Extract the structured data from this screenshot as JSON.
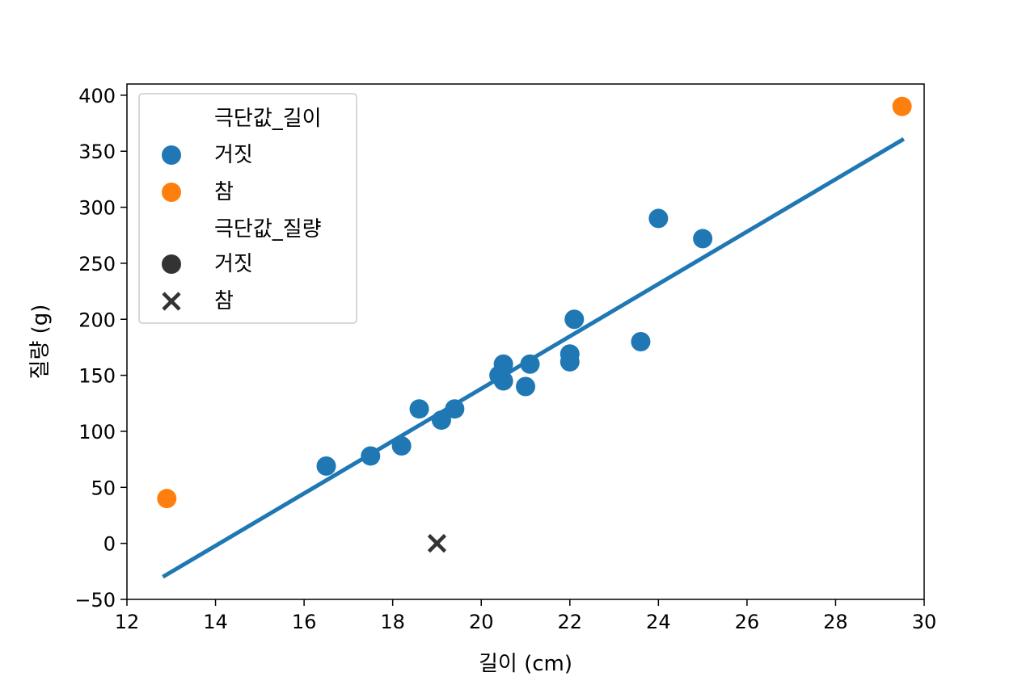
{
  "chart_data": {
    "type": "scatter",
    "title": "",
    "xlabel": "길이 (cm)",
    "ylabel": "질량 (g)",
    "xlim": [
      12,
      30
    ],
    "ylim": [
      -50,
      410
    ],
    "xticks": [
      12,
      14,
      16,
      18,
      20,
      22,
      24,
      26,
      28,
      30
    ],
    "xtick_labels": [
      "12",
      "14",
      "16",
      "18",
      "20",
      "22",
      "24",
      "26",
      "28",
      "30"
    ],
    "yticks": [
      -50,
      0,
      50,
      100,
      150,
      200,
      250,
      300,
      350,
      400
    ],
    "ytick_labels": [
      "−50",
      "0",
      "50",
      "100",
      "150",
      "200",
      "250",
      "300",
      "350",
      "400"
    ],
    "grid": false,
    "legend_position": "top-left",
    "colors": {
      "false": "#1f77b4",
      "true": "#ff7f0e",
      "marker_neutral": "#333333",
      "regression": "#1f77b4"
    },
    "legend": {
      "hue_title": "극단값_길이",
      "hue_false": "거짓",
      "hue_true": "참",
      "style_title": "극단값_질량",
      "style_false": "거짓",
      "style_true": "참"
    },
    "points": [
      {
        "x": 16.5,
        "y": 69,
        "hue": false,
        "marker": "circle"
      },
      {
        "x": 17.5,
        "y": 78,
        "hue": false,
        "marker": "circle"
      },
      {
        "x": 18.2,
        "y": 87,
        "hue": false,
        "marker": "circle"
      },
      {
        "x": 18.6,
        "y": 120,
        "hue": false,
        "marker": "circle"
      },
      {
        "x": 19.1,
        "y": 110,
        "hue": false,
        "marker": "circle"
      },
      {
        "x": 19.4,
        "y": 120,
        "hue": false,
        "marker": "circle"
      },
      {
        "x": 20.4,
        "y": 150,
        "hue": false,
        "marker": "circle"
      },
      {
        "x": 20.5,
        "y": 160,
        "hue": false,
        "marker": "circle"
      },
      {
        "x": 20.5,
        "y": 145,
        "hue": false,
        "marker": "circle"
      },
      {
        "x": 21.0,
        "y": 140,
        "hue": false,
        "marker": "circle"
      },
      {
        "x": 21.1,
        "y": 160,
        "hue": false,
        "marker": "circle"
      },
      {
        "x": 22.0,
        "y": 169,
        "hue": false,
        "marker": "circle"
      },
      {
        "x": 22.0,
        "y": 162,
        "hue": false,
        "marker": "circle"
      },
      {
        "x": 22.1,
        "y": 200,
        "hue": false,
        "marker": "circle"
      },
      {
        "x": 23.6,
        "y": 180,
        "hue": false,
        "marker": "circle"
      },
      {
        "x": 24.0,
        "y": 290,
        "hue": false,
        "marker": "circle"
      },
      {
        "x": 25.0,
        "y": 272,
        "hue": false,
        "marker": "circle"
      },
      {
        "x": 12.9,
        "y": 40,
        "hue": true,
        "marker": "circle"
      },
      {
        "x": 29.5,
        "y": 390,
        "hue": true,
        "marker": "circle"
      },
      {
        "x": 19.0,
        "y": 0,
        "hue": false,
        "marker": "x"
      }
    ],
    "regression_line": {
      "x": [
        12.85,
        29.5
      ],
      "y": [
        -29,
        360
      ]
    }
  }
}
